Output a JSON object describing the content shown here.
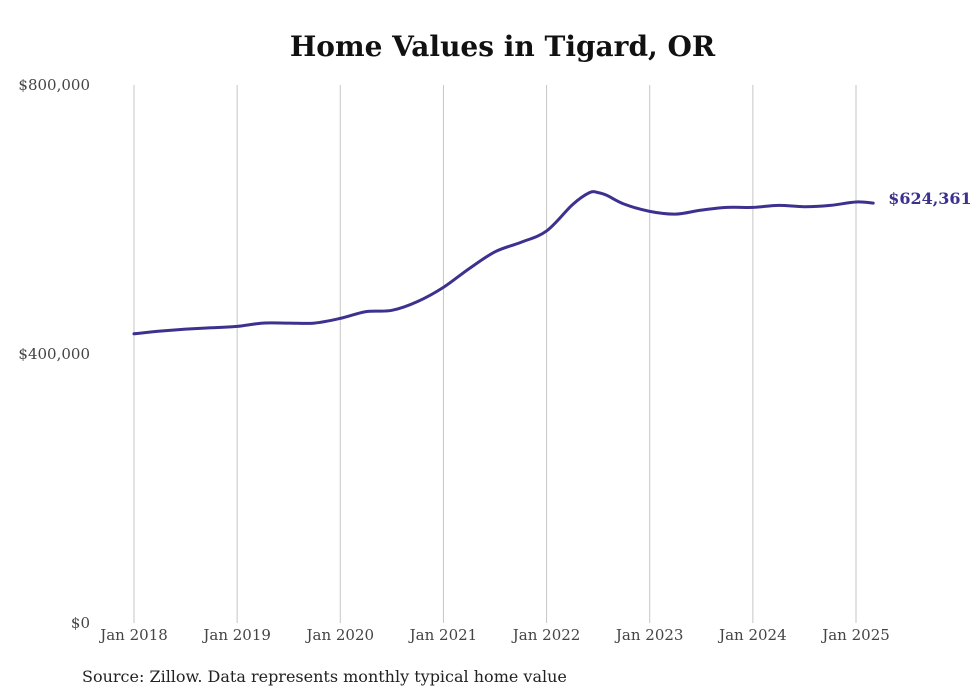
{
  "chart_data": {
    "type": "line",
    "title": "Home Values in Tigard, OR",
    "xlabel": "",
    "ylabel": "",
    "ylim": [
      0,
      800000
    ],
    "xlim": [
      "2018-01",
      "2025-03"
    ],
    "grid": "vertical",
    "color": "#3d3190",
    "y_ticks": [
      {
        "value": 0,
        "label": "$0"
      },
      {
        "value": 400000,
        "label": "$400,000"
      },
      {
        "value": 800000,
        "label": "$800,000"
      }
    ],
    "x_ticks": [
      {
        "value": "2018-01",
        "label": "Jan 2018"
      },
      {
        "value": "2019-01",
        "label": "Jan 2019"
      },
      {
        "value": "2020-01",
        "label": "Jan 2020"
      },
      {
        "value": "2021-01",
        "label": "Jan 2021"
      },
      {
        "value": "2022-01",
        "label": "Jan 2022"
      },
      {
        "value": "2023-01",
        "label": "Jan 2023"
      },
      {
        "value": "2024-01",
        "label": "Jan 2024"
      },
      {
        "value": "2025-01",
        "label": "Jan 2025"
      }
    ],
    "series": [
      {
        "points": [
          [
            "2018-01",
            430000
          ],
          [
            "2018-04",
            434000
          ],
          [
            "2018-07",
            437000
          ],
          [
            "2018-10",
            439000
          ],
          [
            "2019-01",
            441000
          ],
          [
            "2019-04",
            446000
          ],
          [
            "2019-07",
            446000
          ],
          [
            "2019-10",
            446000
          ],
          [
            "2020-01",
            453000
          ],
          [
            "2020-04",
            463000
          ],
          [
            "2020-07",
            465000
          ],
          [
            "2020-10",
            478000
          ],
          [
            "2021-01",
            499000
          ],
          [
            "2021-04",
            527000
          ],
          [
            "2021-07",
            552000
          ],
          [
            "2021-10",
            566000
          ],
          [
            "2022-01",
            583000
          ],
          [
            "2022-04",
            622000
          ],
          [
            "2022-06",
            640000
          ],
          [
            "2022-07",
            640000
          ],
          [
            "2022-08",
            636000
          ],
          [
            "2022-10",
            623000
          ],
          [
            "2023-01",
            612000
          ],
          [
            "2023-04",
            608000
          ],
          [
            "2023-07",
            614000
          ],
          [
            "2023-10",
            618000
          ],
          [
            "2024-01",
            618000
          ],
          [
            "2024-04",
            621000
          ],
          [
            "2024-07",
            619000
          ],
          [
            "2024-10",
            621000
          ],
          [
            "2025-01",
            626000
          ],
          [
            "2025-03",
            624361
          ]
        ]
      }
    ],
    "annotations": [
      {
        "label": "$624,361",
        "x": "2025-03",
        "y": 624361
      }
    ]
  },
  "source_note": "Source: Zillow. Data represents monthly typical home value"
}
